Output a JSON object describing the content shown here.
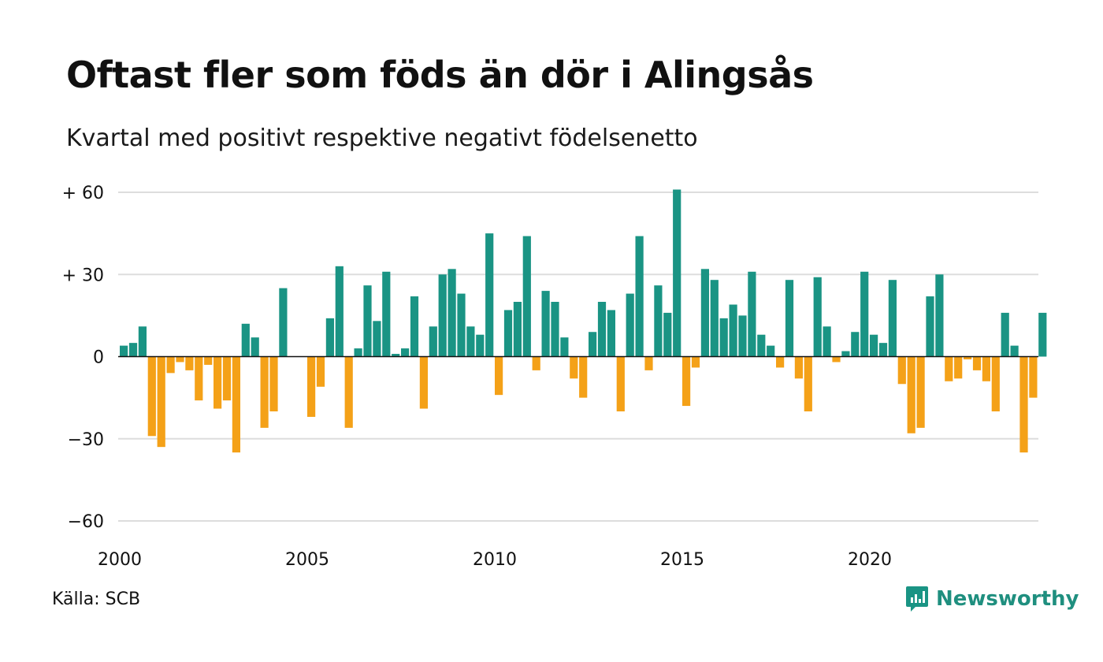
{
  "title": "Oftast fler som föds än dör i Alingsås",
  "subtitle": "Kvartal med positivt respektive negativt födelsenetto",
  "source": "Källa: SCB",
  "brand": {
    "name": "Newsworthy",
    "icon": "newsworthy-logo-icon"
  },
  "colors": {
    "positive": "#1a9484",
    "negative": "#f4a118",
    "grid": "#dddddd",
    "zero": "#111111"
  },
  "chart_data": {
    "type": "bar",
    "title": "Oftast fler som föds än dör i Alingsås",
    "subtitle": "Kvartal med positivt respektive negativt födelsenetto",
    "xlabel": "",
    "ylabel": "",
    "ylim": [
      -60,
      60
    ],
    "grid": true,
    "y_ticks": [
      {
        "value": 60,
        "label": "+ 60"
      },
      {
        "value": 30,
        "label": "+ 30"
      },
      {
        "value": 0,
        "label": "0"
      },
      {
        "value": -30,
        "label": "−30"
      },
      {
        "value": -60,
        "label": "−60"
      }
    ],
    "x_ticks": [
      {
        "value": 2000,
        "label": "2000"
      },
      {
        "value": 2005,
        "label": "2005"
      },
      {
        "value": 2010,
        "label": "2010"
      },
      {
        "value": 2015,
        "label": "2015"
      },
      {
        "value": 2020,
        "label": "2020"
      }
    ],
    "x_start": 2000,
    "bars_per_year": 4,
    "values": [
      4,
      5,
      11,
      -29,
      -33,
      -6,
      -2,
      -5,
      -16,
      -3,
      -19,
      -16,
      -35,
      12,
      7,
      -26,
      -20,
      25,
      0,
      0,
      -22,
      -11,
      14,
      33,
      -26,
      3,
      26,
      13,
      31,
      1,
      3,
      22,
      -19,
      11,
      30,
      32,
      23,
      11,
      8,
      45,
      -14,
      17,
      20,
      44,
      -5,
      24,
      20,
      7,
      -8,
      -15,
      9,
      20,
      17,
      -20,
      23,
      44,
      -5,
      26,
      16,
      61,
      -18,
      -4,
      32,
      28,
      14,
      19,
      15,
      31,
      8,
      4,
      -4,
      28,
      -8,
      -20,
      29,
      11,
      -2,
      2,
      9,
      31,
      8,
      5,
      28,
      -10,
      -28,
      -26,
      22,
      30,
      -9,
      -8,
      -1,
      -5,
      -9,
      -20,
      16,
      4,
      -35,
      -15,
      16
    ]
  }
}
